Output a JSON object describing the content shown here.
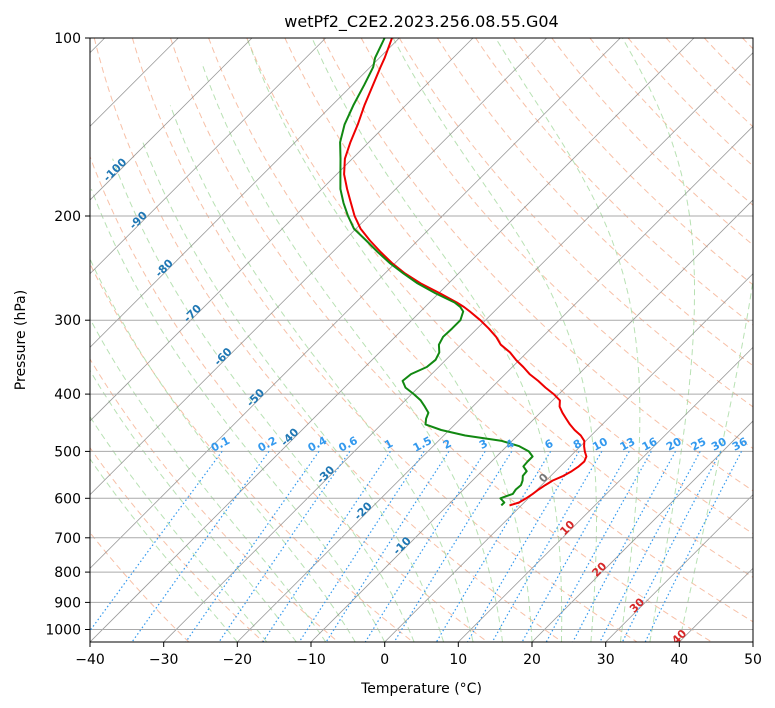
{
  "chart_data": {
    "type": "line",
    "title": "wetPf2_C2E2.2023.256.08.55.G04",
    "xlabel": "Temperature (°C)",
    "ylabel": "Pressure (hPa)",
    "xlim": [
      -40,
      50
    ],
    "ylim": [
      1050,
      100
    ],
    "y_scale": "log",
    "x_ticks": [
      -40,
      -30,
      -20,
      -10,
      0,
      10,
      20,
      30,
      40,
      50
    ],
    "x_tick_labels": [
      "−40",
      "−30",
      "−20",
      "−10",
      "0",
      "10",
      "20",
      "30",
      "40",
      "50"
    ],
    "y_ticks": [
      100,
      200,
      300,
      400,
      500,
      600,
      700,
      800,
      900,
      1000
    ],
    "y_tick_labels": [
      "100",
      "200",
      "300",
      "400",
      "500",
      "600",
      "700",
      "800",
      "900",
      "1000"
    ],
    "grid": true,
    "colors": {
      "temperature": "#ee0000",
      "dewpoint": "#118811",
      "isotherm": "#888888",
      "dry_adiabat": "#f4a582",
      "moist_adiabat": "#a6d9a0",
      "mixing_ratio": "#3399ee",
      "isotherm_label": "#1f77b4",
      "zero_label": "#777777",
      "red_label": "#d62728"
    },
    "series": [
      {
        "key": "temperature",
        "pressure": [
          100,
          108,
          112,
          120,
          130,
          140,
          150,
          160,
          170,
          180,
          190,
          200,
          210,
          220,
          230,
          240,
          250,
          260,
          270,
          280,
          285,
          290,
          300,
          310,
          320,
          330,
          340,
          350,
          360,
          370,
          380,
          390,
          400,
          410,
          420,
          430,
          440,
          450,
          460,
          470,
          480,
          490,
          500,
          510,
          520,
          530,
          540,
          550,
          560,
          570,
          580,
          590,
          600,
          610,
          617
        ],
        "values": [
          -81,
          -79.3,
          -78.6,
          -77.2,
          -75.6,
          -73.9,
          -72.5,
          -71,
          -69,
          -66.6,
          -64.2,
          -61.9,
          -59.4,
          -56.5,
          -53.5,
          -50.5,
          -47.3,
          -43.8,
          -39.9,
          -36.3,
          -34.7,
          -33.3,
          -30.7,
          -28.4,
          -26.3,
          -24.6,
          -22.3,
          -20.5,
          -18.5,
          -16.7,
          -14.6,
          -12.7,
          -10.7,
          -9,
          -8.2,
          -7,
          -5.7,
          -4.4,
          -3,
          -1.4,
          -0.2,
          0.5,
          1.3,
          2.2,
          2.6,
          2.5,
          2.2,
          1.7,
          0.9,
          0.5,
          0.2,
          0,
          -0.3,
          -0.7,
          -1.6
        ]
      },
      {
        "key": "dewpoint",
        "pressure": [
          100,
          108,
          112,
          120,
          130,
          140,
          150,
          160,
          170,
          180,
          190,
          200,
          210,
          220,
          230,
          240,
          250,
          260,
          270,
          280,
          285,
          290,
          300,
          310,
          320,
          330,
          340,
          350,
          360,
          370,
          380,
          390,
          400,
          410,
          420,
          430,
          440,
          450,
          460,
          470,
          480,
          490,
          500,
          510,
          520,
          530,
          540,
          550,
          560,
          570,
          580,
          590,
          600,
          610,
          617
        ],
        "values": [
          -82,
          -80.6,
          -79.6,
          -78.4,
          -77.1,
          -75.7,
          -73.9,
          -71.6,
          -69.5,
          -67.5,
          -65.2,
          -62.8,
          -60.3,
          -57,
          -53.9,
          -50.8,
          -47.5,
          -44.2,
          -40.5,
          -36.6,
          -35.2,
          -34.2,
          -33.4,
          -33.4,
          -33.5,
          -33,
          -31.9,
          -31.4,
          -31.6,
          -32.8,
          -33,
          -31.7,
          -29.7,
          -27.9,
          -26.5,
          -25.2,
          -24.7,
          -24,
          -21.1,
          -17.1,
          -11.4,
          -8.3,
          -6.3,
          -5.1,
          -5.1,
          -5,
          -3.9,
          -3.8,
          -3.2,
          -2.8,
          -2.9,
          -2.7,
          -3.8,
          -2.7,
          -2.7
        ]
      }
    ],
    "isotherm_labels": [
      "-100",
      "-90",
      "-80",
      "-70",
      "-60",
      "-50",
      "-40",
      "-30",
      "-20",
      "-10",
      "0",
      "10",
      "20",
      "30",
      "40"
    ],
    "mixing_ratio_labels": [
      "0.1",
      "0.2",
      "0.4",
      "0.6",
      "1",
      "1.5",
      "2",
      "3",
      "4",
      "6",
      "8",
      "10",
      "13",
      "16",
      "20",
      "25",
      "30",
      "36"
    ]
  }
}
